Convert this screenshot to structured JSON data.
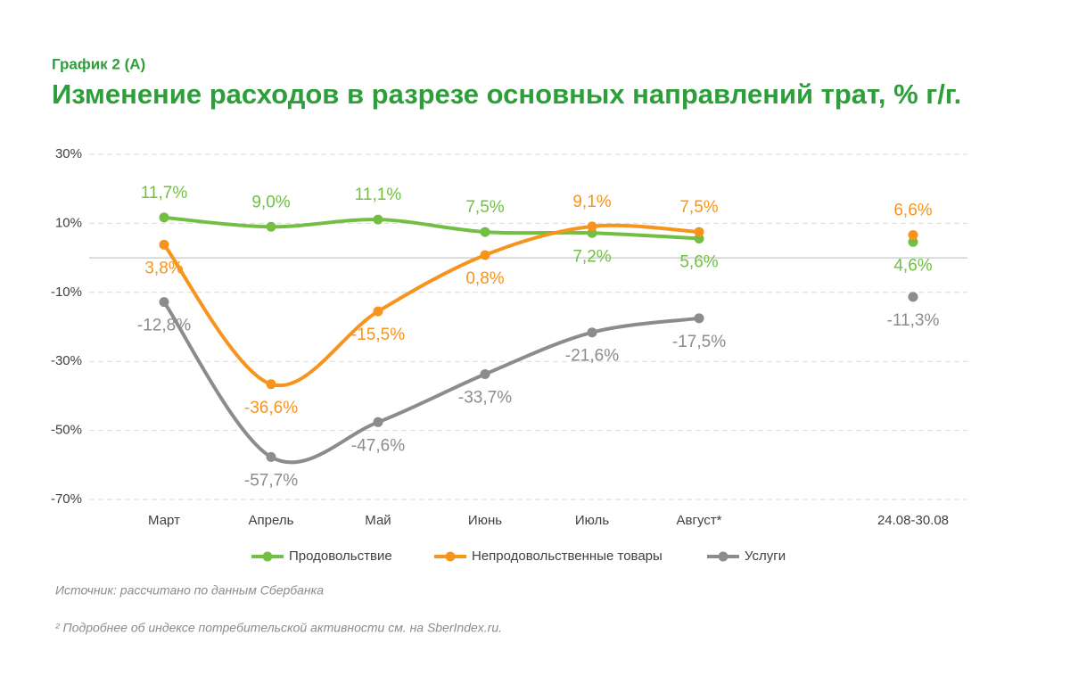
{
  "chart_data": {
    "type": "line",
    "subtitle": "График 2 (А)",
    "title": "Изменение расходов в разрезе основных направлений трат, % г/г.",
    "categories": [
      "Март",
      "Апрель",
      "Май",
      "Июнь",
      "Июль",
      "Август*",
      null,
      "24.08-30.08"
    ],
    "series": [
      {
        "name": "Продовольствие",
        "color": "#72bf44",
        "values": [
          11.7,
          9.0,
          11.1,
          7.5,
          7.2,
          5.6,
          null,
          4.6
        ],
        "value_labels": [
          "11,7%",
          "9,0%",
          "11,1%",
          "7,5%",
          "7,2%",
          "5,6%",
          null,
          "4,6%"
        ]
      },
      {
        "name": "Непродовольственные товары",
        "color": "#f7941d",
        "values": [
          3.8,
          -36.6,
          -15.5,
          0.8,
          9.1,
          7.5,
          null,
          6.6
        ],
        "value_labels": [
          "3,8%",
          "-36,6%",
          "-15,5%",
          "0,8%",
          "9,1%",
          "7,5%",
          null,
          "6,6%"
        ]
      },
      {
        "name": "Услуги",
        "color": "#8c8c8c",
        "values": [
          -12.8,
          -57.7,
          -47.6,
          -33.7,
          -21.6,
          -17.5,
          null,
          -11.3
        ],
        "value_labels": [
          "-12,8%",
          "-57,7%",
          "-47,6%",
          "-33,7%",
          "-21,6%",
          "-17,5%",
          null,
          "-11,3%"
        ]
      }
    ],
    "ylim": [
      -70,
      30
    ],
    "yticks": [
      {
        "value": -70,
        "label": "-70%"
      },
      {
        "value": -50,
        "label": "-50%"
      },
      {
        "value": -30,
        "label": "-30%"
      },
      {
        "value": -10,
        "label": "-10%"
      },
      {
        "value": 10,
        "label": "10%"
      },
      {
        "value": 30,
        "label": "30%"
      }
    ],
    "grid": true,
    "legend": "bottom",
    "source": "Источник: рассчитано по данным Сбербанка",
    "footnote": "² Подробнее об индексе потребительской активности см. на SberIndex.ru."
  }
}
